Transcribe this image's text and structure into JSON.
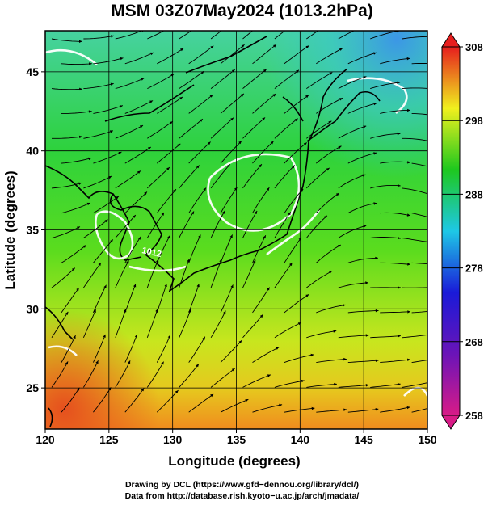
{
  "title": "MSM 03Z07May2024 (1013.2hPa)",
  "map": {
    "xlabel": "Longitude (degrees)",
    "ylabel": "Latitude  (degrees)",
    "xlim": [
      120,
      150
    ],
    "ylim": [
      22.4,
      47.6
    ],
    "x_ticks": [
      "120",
      "125",
      "130",
      "135",
      "140",
      "145",
      "150"
    ],
    "y_ticks": [
      "25",
      "30",
      "35",
      "40",
      "45"
    ],
    "contour_labels": [
      "1012"
    ]
  },
  "colorbar": {
    "range": [
      258,
      308
    ],
    "tick_labels": [
      "308",
      "298",
      "288",
      "278",
      "268",
      "258"
    ],
    "colors": [
      "#d81b87",
      "#6a14b8",
      "#1a1ad8",
      "#1ec8e6",
      "#1ec81e",
      "#f0f01e",
      "#e61e1e"
    ]
  },
  "credits": {
    "line1": "Drawing by DCL (https://www.gfd−dennou.org/library/dcl/)",
    "line2": "Data from http://database.rish.kyoto−u.ac.jp/arch/jmadata/"
  }
}
